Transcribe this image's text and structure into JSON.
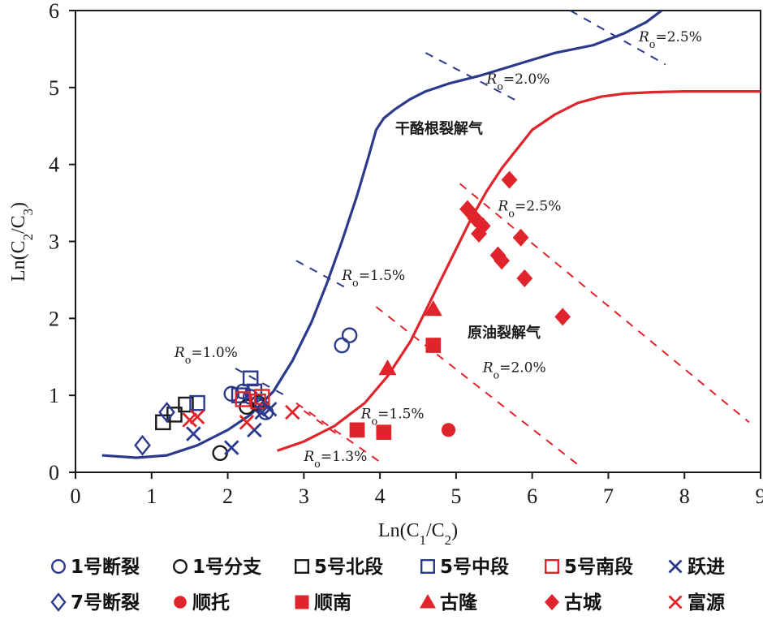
{
  "chart_data": {
    "type": "scatter",
    "xlabel": "Ln(C1/C2)",
    "ylabel": "Ln(C2/C3)",
    "xlim": [
      0,
      9
    ],
    "ylim": [
      0,
      6
    ],
    "xticks": [
      "0",
      "1",
      "2",
      "3",
      "4",
      "5",
      "6",
      "7",
      "8",
      "9"
    ],
    "yticks": [
      "0",
      "1",
      "2",
      "3",
      "4",
      "5",
      "6"
    ],
    "colors": {
      "blue": "#2c3a8c",
      "black": "#1a1a1a",
      "red": "#e0242b"
    },
    "curves": [
      {
        "name": "干酪根裂解气",
        "color": "#2c3a8c",
        "x": [
          0.35,
          0.8,
          1.2,
          1.6,
          2.0,
          2.3,
          2.6,
          2.85,
          3.1,
          3.3,
          3.5,
          3.7,
          3.85,
          3.95,
          4.05,
          4.2,
          4.4,
          4.6,
          4.9,
          5.3,
          5.8,
          6.3,
          6.8,
          7.2,
          7.5,
          7.7
        ],
        "y": [
          0.22,
          0.19,
          0.22,
          0.35,
          0.55,
          0.75,
          1.05,
          1.45,
          1.95,
          2.45,
          3.0,
          3.6,
          4.1,
          4.45,
          4.6,
          4.72,
          4.85,
          4.95,
          5.05,
          5.15,
          5.3,
          5.45,
          5.55,
          5.7,
          5.85,
          6.0
        ]
      },
      {
        "name": "原油裂解气",
        "color": "#e0242b",
        "x": [
          2.65,
          3.0,
          3.4,
          3.8,
          4.1,
          4.4,
          4.6,
          4.8,
          5.0,
          5.2,
          5.4,
          5.6,
          5.8,
          6.0,
          6.3,
          6.6,
          6.9,
          7.2,
          7.6,
          8.0,
          8.5,
          9.0
        ],
        "y": [
          0.28,
          0.4,
          0.6,
          0.9,
          1.25,
          1.7,
          2.1,
          2.5,
          2.9,
          3.3,
          3.65,
          3.95,
          4.2,
          4.45,
          4.65,
          4.8,
          4.88,
          4.92,
          4.94,
          4.95,
          4.95,
          4.95
        ]
      }
    ],
    "ro_lines": [
      {
        "color": "blue",
        "x1": 2.1,
        "y1": 1.35,
        "x2": 2.75,
        "y2": 1.0
      },
      {
        "color": "blue",
        "x1": 2.9,
        "y1": 2.75,
        "x2": 3.55,
        "y2": 2.4
      },
      {
        "color": "blue",
        "x1": 4.6,
        "y1": 5.45,
        "x2": 5.85,
        "y2": 4.8
      },
      {
        "color": "blue",
        "x1": 6.5,
        "y1": 6.0,
        "x2": 7.75,
        "y2": 5.3
      },
      {
        "color": "red",
        "x1": 2.9,
        "y1": 0.9,
        "x2": 4.05,
        "y2": 0.1
      },
      {
        "color": "red",
        "x1": 3.0,
        "y1": 0.8,
        "x2": 3.5,
        "y2": 0.45
      },
      {
        "color": "red",
        "x1": 3.95,
        "y1": 2.15,
        "x2": 6.6,
        "y2": 0.1
      },
      {
        "color": "red",
        "x1": 5.05,
        "y1": 3.75,
        "x2": 8.85,
        "y2": 0.65
      }
    ],
    "annotations": [
      {
        "text": "Ro=1.0%",
        "x": 1.3,
        "y": 1.5
      },
      {
        "text": "Ro=1.5%",
        "x": 3.5,
        "y": 2.5
      },
      {
        "text": "Ro=2.0%",
        "x": 5.4,
        "y": 5.05
      },
      {
        "text": "Ro=2.5%",
        "x": 7.4,
        "y": 5.6
      },
      {
        "text": "Ro=2.5%",
        "x": 5.55,
        "y": 3.4
      },
      {
        "text": "Ro=2.0%",
        "x": 5.35,
        "y": 1.3
      },
      {
        "text": "Ro=1.5%",
        "x": 3.75,
        "y": 0.7
      },
      {
        "text": "Ro=1.3%",
        "x": 3.0,
        "y": 0.15
      },
      {
        "text": "干酪根裂解气",
        "x": 4.2,
        "y": 4.4
      },
      {
        "text": "原油裂解气",
        "x": 5.15,
        "y": 1.75
      }
    ],
    "series": [
      {
        "name": "1号断裂",
        "marker": "circle-open",
        "color": "blue",
        "x": [
          2.05,
          2.2,
          2.3,
          2.45,
          2.5,
          3.5,
          3.6
        ],
        "y": [
          1.02,
          1.05,
          0.98,
          0.85,
          0.78,
          1.65,
          1.78
        ]
      },
      {
        "name": "1号分支",
        "marker": "circle-open",
        "color": "black",
        "x": [
          1.9,
          2.25,
          2.4
        ],
        "y": [
          0.25,
          0.85,
          0.9
        ]
      },
      {
        "name": "5号北段",
        "marker": "square-open",
        "color": "black",
        "x": [
          1.15,
          1.3,
          1.45
        ],
        "y": [
          0.65,
          0.75,
          0.88
        ]
      },
      {
        "name": "5号中段",
        "marker": "square-open",
        "color": "blue",
        "x": [
          1.6,
          2.15,
          2.3,
          2.35
        ],
        "y": [
          0.9,
          1.0,
          1.22,
          1.05
        ]
      },
      {
        "name": "5号南段",
        "marker": "square-open",
        "color": "red",
        "x": [
          2.2,
          2.4,
          2.45
        ],
        "y": [
          0.95,
          0.92,
          0.98
        ]
      },
      {
        "name": "跃进",
        "marker": "x",
        "color": "blue",
        "x": [
          1.55,
          2.05,
          2.35,
          2.45,
          2.55
        ],
        "y": [
          0.5,
          0.32,
          0.55,
          0.78,
          0.82
        ]
      },
      {
        "name": "7号断裂",
        "marker": "diamond-open",
        "color": "blue",
        "x": [
          0.88,
          1.2
        ],
        "y": [
          0.35,
          0.78
        ]
      },
      {
        "name": "顺托",
        "marker": "circle-filled",
        "color": "red",
        "x": [
          4.9
        ],
        "y": [
          0.55
        ]
      },
      {
        "name": "顺南",
        "marker": "square-filled",
        "color": "red",
        "x": [
          3.7,
          4.05,
          4.7
        ],
        "y": [
          0.55,
          0.52,
          1.65
        ]
      },
      {
        "name": "古隆",
        "marker": "triangle-filled",
        "color": "red",
        "x": [
          4.1,
          4.7
        ],
        "y": [
          1.35,
          2.12
        ]
      },
      {
        "name": "古城",
        "marker": "diamond-filled",
        "color": "red",
        "x": [
          5.15,
          5.25,
          5.3,
          5.35,
          5.55,
          5.6,
          5.7,
          5.85,
          5.9,
          6.4
        ],
        "y": [
          3.42,
          3.3,
          3.1,
          3.2,
          2.82,
          2.75,
          3.8,
          3.05,
          2.52,
          2.02
        ]
      },
      {
        "name": "富源",
        "marker": "x",
        "color": "red",
        "x": [
          1.5,
          1.6,
          2.25,
          2.85
        ],
        "y": [
          0.68,
          0.72,
          0.65,
          0.78
        ]
      }
    ],
    "legend_rows": [
      [
        "1号断裂",
        "1号分支",
        "5号北段",
        "5号中段",
        "5号南段",
        "跃进"
      ],
      [
        "7号断裂",
        "顺托",
        "顺南",
        "古隆",
        "古城",
        "富源"
      ]
    ]
  }
}
